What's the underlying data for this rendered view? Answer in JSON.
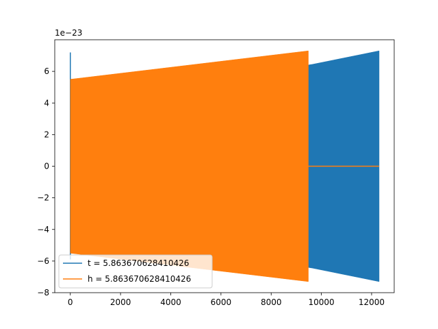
{
  "chart_data": {
    "type": "line",
    "title": "",
    "xlabel": "",
    "ylabel": "",
    "xlim": [
      -620,
      12900
    ],
    "ylim": [
      -8,
      8
    ],
    "y_offset_label": "1e−23",
    "xticks": [
      0,
      2000,
      4000,
      6000,
      8000,
      10000,
      12000
    ],
    "xtick_labels": [
      "0",
      "2000",
      "4000",
      "6000",
      "8000",
      "10000",
      "12000"
    ],
    "yticks": [
      -8,
      -6,
      -4,
      -2,
      0,
      2,
      4,
      6
    ],
    "ytick_labels": [
      "−8",
      "−6",
      "−4",
      "−2",
      "0",
      "2",
      "4",
      "6"
    ],
    "grid": false,
    "legend_position": "lower-left",
    "series": [
      {
        "name": "t = 5.863670628410426",
        "color": "#1f77b4",
        "envelope_x": [
          0,
          9500,
          12300
        ],
        "envelope_upper": [
          5.5,
          6.4,
          7.3
        ],
        "envelope_lower": [
          -5.5,
          -6.4,
          -7.3
        ],
        "initial_spike": [
          7.2,
          -5.9
        ]
      },
      {
        "name": "h = 5.863670628410426",
        "color": "#ff7f0e",
        "envelope_x": [
          0,
          9480
        ],
        "envelope_upper": [
          5.5,
          7.3
        ],
        "envelope_lower": [
          -5.5,
          -7.3
        ],
        "after_x": [
          9480,
          12300
        ],
        "after_y": [
          0,
          0
        ]
      }
    ]
  }
}
